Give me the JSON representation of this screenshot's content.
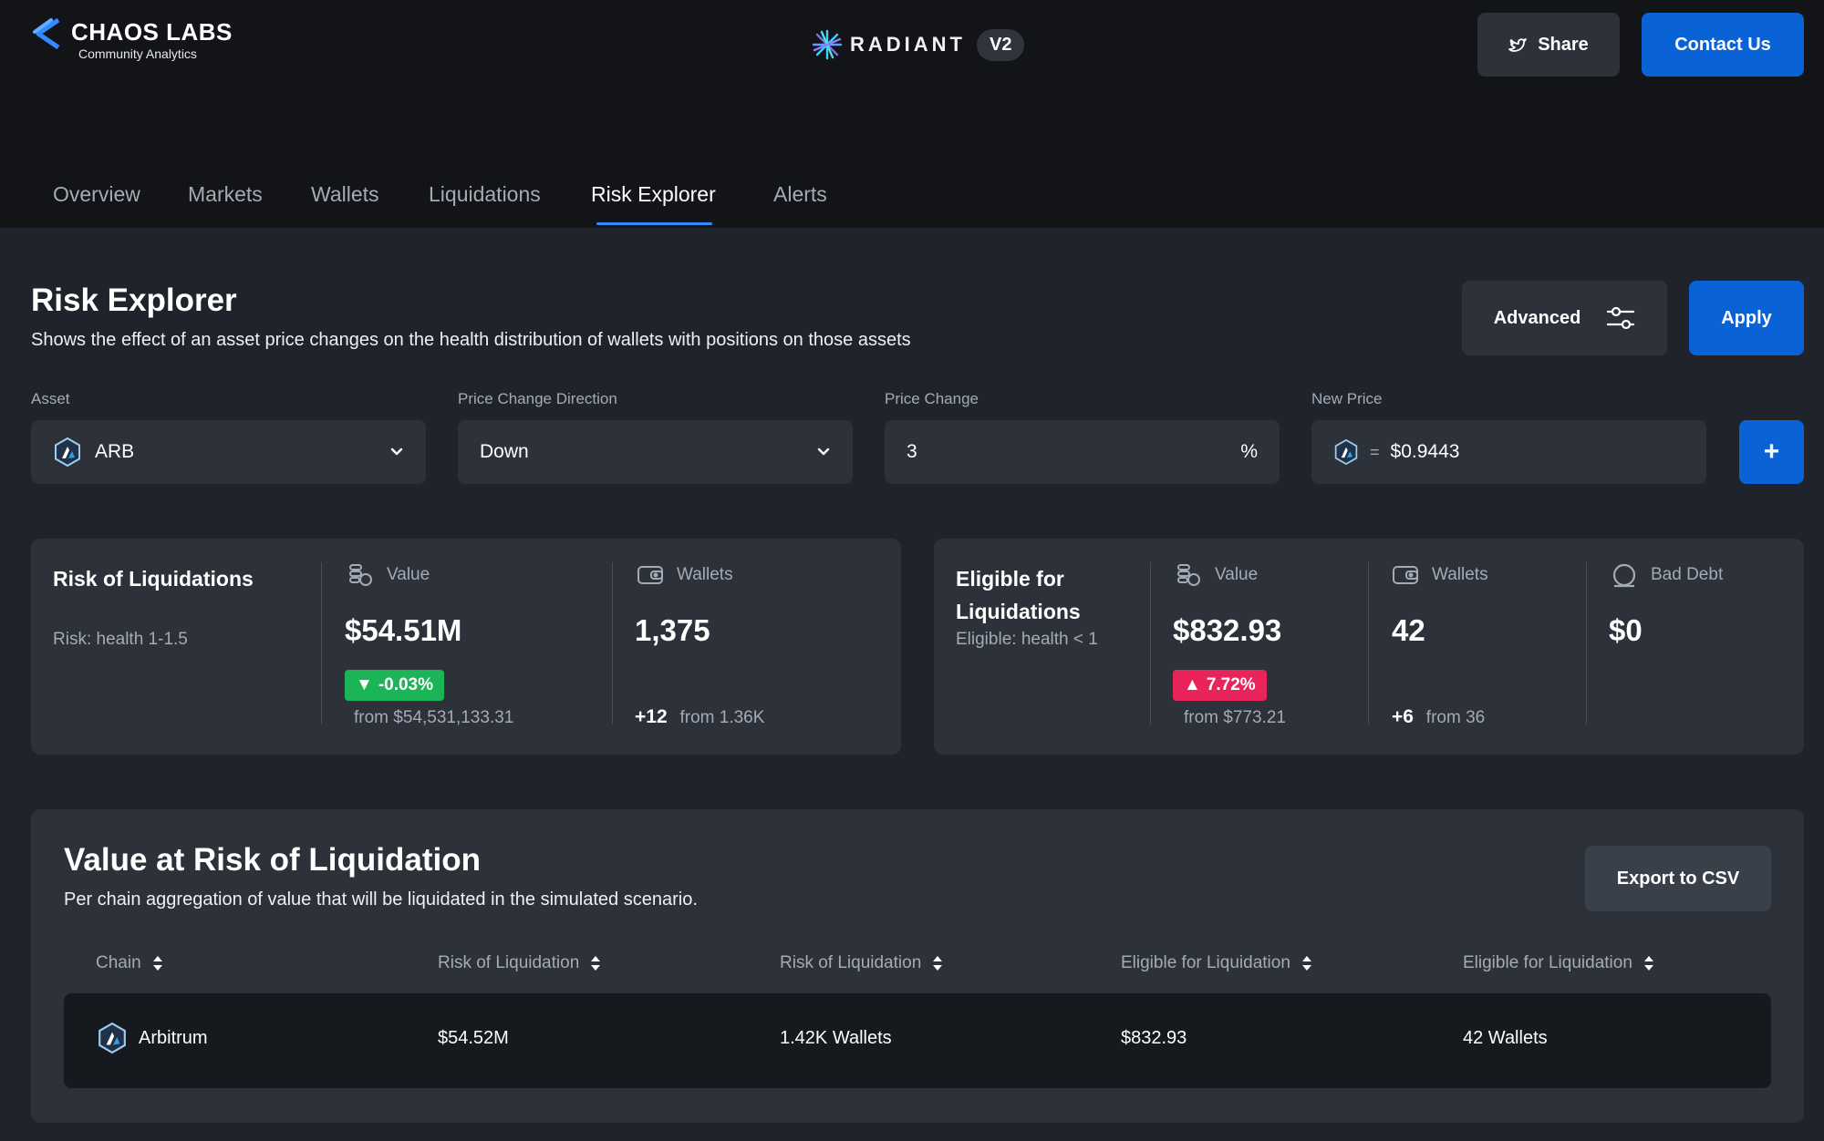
{
  "header": {
    "logo_title": "CHAOS LABS",
    "logo_subtitle": "Community Analytics",
    "brand_name": "RADIANT",
    "brand_version": "V2",
    "share_label": "Share",
    "contact_label": "Contact Us"
  },
  "tabs": [
    {
      "label": "Overview",
      "active": false
    },
    {
      "label": "Markets",
      "active": false
    },
    {
      "label": "Wallets",
      "active": false
    },
    {
      "label": "Liquidations",
      "active": false
    },
    {
      "label": "Risk Explorer",
      "active": true
    },
    {
      "label": "Alerts",
      "active": false
    }
  ],
  "page": {
    "title": "Risk Explorer",
    "subtitle": "Shows the effect of an asset price changes on the health distribution of wallets with positions on those assets",
    "advanced_label": "Advanced",
    "apply_label": "Apply"
  },
  "form": {
    "asset_label": "Asset",
    "asset_value": "ARB",
    "direction_label": "Price Change Direction",
    "direction_value": "Down",
    "change_label": "Price Change",
    "change_value": "3",
    "change_unit": "%",
    "new_price_label": "New Price",
    "new_price_eq": "=",
    "new_price_value": "$0.9443",
    "add_label": "+"
  },
  "risk_card": {
    "title": "Risk of Liquidations",
    "subtitle": "Risk: health 1-1.5",
    "value_label": "Value",
    "value": "$54.51M",
    "value_change": "-0.03%",
    "value_from": "from $54,531,133.31",
    "wallets_label": "Wallets",
    "wallets": "1,375",
    "wallets_delta": "+12",
    "wallets_from": "from 1.36K"
  },
  "eligible_card": {
    "title": "Eligible for Liquidations",
    "subtitle": "Eligible: health < 1",
    "value_label": "Value",
    "value": "$832.93",
    "value_change": "7.72%",
    "value_from": "from $773.21",
    "wallets_label": "Wallets",
    "wallets": "42",
    "wallets_delta": "+6",
    "wallets_from": "from 36",
    "bad_debt_label": "Bad Debt",
    "bad_debt": "$0"
  },
  "table": {
    "title": "Value at Risk of Liquidation",
    "subtitle": "Per chain aggregation of value that will be liquidated in the simulated scenario.",
    "export_label": "Export to CSV",
    "columns": [
      "Chain",
      "Risk of Liquidation",
      "Risk of Liquidation",
      "Eligible for Liquidation",
      "Eligible for Liquidation"
    ],
    "rows": [
      [
        "Arbitrum",
        "$54.52M",
        "1.42K Wallets",
        "$832.93",
        "42 Wallets"
      ]
    ]
  },
  "colors": {
    "accent": "#0a63d6",
    "positive": "#1bb557",
    "negative": "#e8245a",
    "background": "#1f232b",
    "header_bg": "#121418"
  }
}
